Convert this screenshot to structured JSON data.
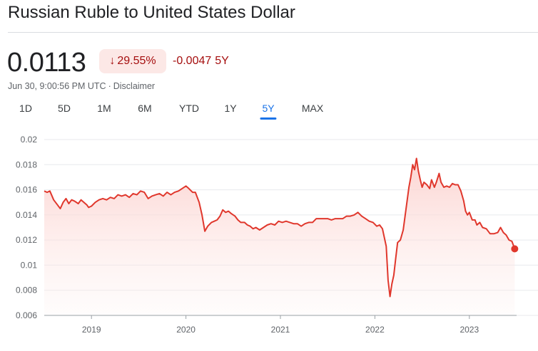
{
  "header": {
    "title": "Russian Ruble to United States Dollar",
    "price": "0.0113",
    "percent_change": "29.55%",
    "change_direction_icon": "arrow-down-icon",
    "absolute_change": "-0.0047",
    "change_period": "5Y",
    "timestamp": "Jun 30, 9:00:56 PM UTC",
    "separator": "·",
    "disclaimer": "Disclaimer"
  },
  "ranges": [
    {
      "label": "1D",
      "active": false
    },
    {
      "label": "5D",
      "active": false
    },
    {
      "label": "1M",
      "active": false
    },
    {
      "label": "6M",
      "active": false
    },
    {
      "label": "YTD",
      "active": false
    },
    {
      "label": "1Y",
      "active": false
    },
    {
      "label": "5Y",
      "active": true
    },
    {
      "label": "MAX",
      "active": false
    }
  ],
  "colors": {
    "line": "#e0372c",
    "fill_top": "#fcd2cf",
    "negative_text": "#a50e0e",
    "negative_bg": "#fce8e6",
    "active_tab": "#1a73e8"
  },
  "chart_data": {
    "type": "area",
    "title": "",
    "xlabel": "",
    "ylabel": "",
    "ylim": [
      0.006,
      0.02
    ],
    "yticks": [
      "0.02",
      "0.018",
      "0.016",
      "0.014",
      "0.012",
      "0.01",
      "0.008",
      "0.006"
    ],
    "xticks": [
      {
        "label": "2019",
        "x": 2019.0
      },
      {
        "label": "2020",
        "x": 2020.0
      },
      {
        "label": "2021",
        "x": 2021.0
      },
      {
        "label": "2022",
        "x": 2022.0
      },
      {
        "label": "2023",
        "x": 2023.0
      }
    ],
    "xlim": [
      2018.5,
      2023.5
    ],
    "grid": true,
    "series": [
      {
        "points": [
          [
            2018.5,
            0.0159
          ],
          [
            2018.53,
            0.0158
          ],
          [
            2018.56,
            0.0159
          ],
          [
            2018.6,
            0.0152
          ],
          [
            2018.64,
            0.0148
          ],
          [
            2018.67,
            0.0145
          ],
          [
            2018.7,
            0.015
          ],
          [
            2018.73,
            0.0153
          ],
          [
            2018.76,
            0.0149
          ],
          [
            2018.79,
            0.0152
          ],
          [
            2018.82,
            0.0151
          ],
          [
            2018.86,
            0.0149
          ],
          [
            2018.89,
            0.0152
          ],
          [
            2018.92,
            0.015
          ],
          [
            2018.95,
            0.0148
          ],
          [
            2018.97,
            0.0146
          ],
          [
            2019.0,
            0.0147
          ],
          [
            2019.04,
            0.015
          ],
          [
            2019.08,
            0.0152
          ],
          [
            2019.12,
            0.0153
          ],
          [
            2019.16,
            0.0152
          ],
          [
            2019.2,
            0.0154
          ],
          [
            2019.24,
            0.0153
          ],
          [
            2019.28,
            0.0156
          ],
          [
            2019.32,
            0.0155
          ],
          [
            2019.36,
            0.0156
          ],
          [
            2019.4,
            0.0154
          ],
          [
            2019.44,
            0.0157
          ],
          [
            2019.48,
            0.0156
          ],
          [
            2019.52,
            0.0159
          ],
          [
            2019.56,
            0.0158
          ],
          [
            2019.6,
            0.0153
          ],
          [
            2019.64,
            0.0155
          ],
          [
            2019.68,
            0.0156
          ],
          [
            2019.72,
            0.0157
          ],
          [
            2019.76,
            0.0155
          ],
          [
            2019.8,
            0.0158
          ],
          [
            2019.84,
            0.0156
          ],
          [
            2019.88,
            0.0158
          ],
          [
            2019.92,
            0.0159
          ],
          [
            2019.96,
            0.0161
          ],
          [
            2020.0,
            0.0163
          ],
          [
            2020.03,
            0.0161
          ],
          [
            2020.07,
            0.0158
          ],
          [
            2020.1,
            0.0158
          ],
          [
            2020.14,
            0.015
          ],
          [
            2020.17,
            0.014
          ],
          [
            2020.2,
            0.0127
          ],
          [
            2020.23,
            0.0131
          ],
          [
            2020.27,
            0.0134
          ],
          [
            2020.3,
            0.0135
          ],
          [
            2020.33,
            0.0136
          ],
          [
            2020.36,
            0.0139
          ],
          [
            2020.39,
            0.0144
          ],
          [
            2020.42,
            0.0142
          ],
          [
            2020.45,
            0.0143
          ],
          [
            2020.48,
            0.0141
          ],
          [
            2020.52,
            0.0139
          ],
          [
            2020.55,
            0.0136
          ],
          [
            2020.58,
            0.0134
          ],
          [
            2020.62,
            0.0134
          ],
          [
            2020.65,
            0.0132
          ],
          [
            2020.68,
            0.0131
          ],
          [
            2020.71,
            0.0129
          ],
          [
            2020.74,
            0.013
          ],
          [
            2020.78,
            0.0128
          ],
          [
            2020.82,
            0.013
          ],
          [
            2020.86,
            0.0132
          ],
          [
            2020.9,
            0.0133
          ],
          [
            2020.94,
            0.0132
          ],
          [
            2020.98,
            0.0135
          ],
          [
            2021.02,
            0.0134
          ],
          [
            2021.06,
            0.0135
          ],
          [
            2021.1,
            0.0134
          ],
          [
            2021.14,
            0.0133
          ],
          [
            2021.18,
            0.0133
          ],
          [
            2021.22,
            0.0131
          ],
          [
            2021.26,
            0.0133
          ],
          [
            2021.3,
            0.0134
          ],
          [
            2021.34,
            0.0134
          ],
          [
            2021.38,
            0.0137
          ],
          [
            2021.42,
            0.0137
          ],
          [
            2021.46,
            0.0137
          ],
          [
            2021.5,
            0.0137
          ],
          [
            2021.54,
            0.0136
          ],
          [
            2021.58,
            0.0137
          ],
          [
            2021.62,
            0.0137
          ],
          [
            2021.66,
            0.0137
          ],
          [
            2021.7,
            0.0139
          ],
          [
            2021.74,
            0.0139
          ],
          [
            2021.78,
            0.014
          ],
          [
            2021.82,
            0.0142
          ],
          [
            2021.86,
            0.0139
          ],
          [
            2021.9,
            0.0137
          ],
          [
            2021.94,
            0.0135
          ],
          [
            2021.98,
            0.0134
          ],
          [
            2022.02,
            0.0131
          ],
          [
            2022.05,
            0.0132
          ],
          [
            2022.08,
            0.0129
          ],
          [
            2022.12,
            0.0115
          ],
          [
            2022.14,
            0.0088
          ],
          [
            2022.16,
            0.0075
          ],
          [
            2022.18,
            0.0085
          ],
          [
            2022.2,
            0.0092
          ],
          [
            2022.22,
            0.0105
          ],
          [
            2022.24,
            0.0118
          ],
          [
            2022.27,
            0.012
          ],
          [
            2022.3,
            0.0128
          ],
          [
            2022.33,
            0.0145
          ],
          [
            2022.36,
            0.0162
          ],
          [
            2022.38,
            0.017
          ],
          [
            2022.4,
            0.018
          ],
          [
            2022.42,
            0.0176
          ],
          [
            2022.44,
            0.0185
          ],
          [
            2022.46,
            0.0175
          ],
          [
            2022.48,
            0.0168
          ],
          [
            2022.5,
            0.0162
          ],
          [
            2022.52,
            0.0166
          ],
          [
            2022.55,
            0.0164
          ],
          [
            2022.58,
            0.0161
          ],
          [
            2022.6,
            0.0168
          ],
          [
            2022.63,
            0.0162
          ],
          [
            2022.65,
            0.0166
          ],
          [
            2022.68,
            0.0173
          ],
          [
            2022.7,
            0.0166
          ],
          [
            2022.73,
            0.0162
          ],
          [
            2022.76,
            0.0163
          ],
          [
            2022.79,
            0.0162
          ],
          [
            2022.82,
            0.0165
          ],
          [
            2022.85,
            0.0164
          ],
          [
            2022.88,
            0.0164
          ],
          [
            2022.91,
            0.0159
          ],
          [
            2022.94,
            0.0151
          ],
          [
            2022.96,
            0.0143
          ],
          [
            2022.98,
            0.014
          ],
          [
            2023.0,
            0.0142
          ],
          [
            2023.03,
            0.0136
          ],
          [
            2023.06,
            0.0136
          ],
          [
            2023.08,
            0.0132
          ],
          [
            2023.11,
            0.0134
          ],
          [
            2023.14,
            0.013
          ],
          [
            2023.18,
            0.0129
          ],
          [
            2023.22,
            0.0125
          ],
          [
            2023.26,
            0.0125
          ],
          [
            2023.3,
            0.0126
          ],
          [
            2023.33,
            0.013
          ],
          [
            2023.36,
            0.0126
          ],
          [
            2023.39,
            0.0124
          ],
          [
            2023.42,
            0.012
          ],
          [
            2023.45,
            0.0119
          ],
          [
            2023.48,
            0.0113
          ]
        ]
      }
    ]
  }
}
